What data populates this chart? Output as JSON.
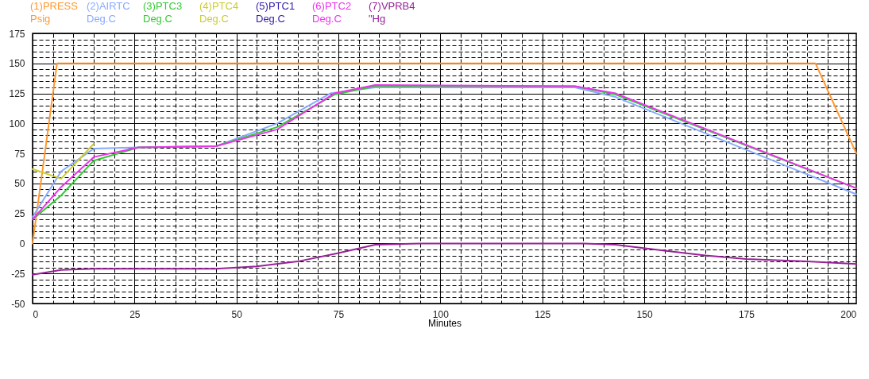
{
  "chart_data": {
    "type": "line",
    "xlabel": "Minutes",
    "xlim": [
      0,
      202
    ],
    "ylim": [
      -50,
      175
    ],
    "xticks": [
      0,
      {
        "value": 5,
        "label": null
      },
      {
        "value": 10,
        "label": null
      },
      {
        "value": 15,
        "label": null
      },
      {
        "value": 20,
        "label": null
      },
      25,
      {
        "value": 30,
        "label": null
      },
      {
        "value": 35,
        "label": null
      },
      {
        "value": 40,
        "label": null
      },
      {
        "value": 45,
        "label": null
      },
      50,
      {
        "value": 55,
        "label": null
      },
      {
        "value": 60,
        "label": null
      },
      {
        "value": 65,
        "label": null
      },
      {
        "value": 70,
        "label": null
      },
      75,
      {
        "value": 80,
        "label": null
      },
      {
        "value": 85,
        "label": null
      },
      {
        "value": 90,
        "label": null
      },
      {
        "value": 95,
        "label": null
      },
      100,
      {
        "value": 105,
        "label": null
      },
      {
        "value": 110,
        "label": null
      },
      {
        "value": 115,
        "label": null
      },
      {
        "value": 120,
        "label": null
      },
      125,
      {
        "value": 130,
        "label": null
      },
      {
        "value": 135,
        "label": null
      },
      {
        "value": 140,
        "label": null
      },
      {
        "value": 145,
        "label": null
      },
      150,
      {
        "value": 155,
        "label": null
      },
      {
        "value": 160,
        "label": null
      },
      {
        "value": 165,
        "label": null
      },
      {
        "value": 170,
        "label": null
      },
      175,
      {
        "value": 180,
        "label": null
      },
      {
        "value": 185,
        "label": null
      },
      {
        "value": 190,
        "label": null
      },
      {
        "value": 195,
        "label": null
      },
      200
    ],
    "yticks": [
      -50,
      {
        "value": -45,
        "label": null
      },
      {
        "value": -40,
        "label": null
      },
      {
        "value": -35,
        "label": null
      },
      {
        "value": -30,
        "label": null
      },
      -25,
      {
        "value": -20,
        "label": null
      },
      {
        "value": -15,
        "label": null
      },
      {
        "value": -10,
        "label": null
      },
      {
        "value": -5,
        "label": null
      },
      0,
      {
        "value": 5,
        "label": null
      },
      {
        "value": 10,
        "label": null
      },
      {
        "value": 15,
        "label": null
      },
      {
        "value": 20,
        "label": null
      },
      25,
      {
        "value": 30,
        "label": null
      },
      {
        "value": 35,
        "label": null
      },
      {
        "value": 40,
        "label": null
      },
      {
        "value": 45,
        "label": null
      },
      50,
      {
        "value": 55,
        "label": null
      },
      {
        "value": 60,
        "label": null
      },
      {
        "value": 65,
        "label": null
      },
      {
        "value": 70,
        "label": null
      },
      75,
      {
        "value": 80,
        "label": null
      },
      {
        "value": 85,
        "label": null
      },
      {
        "value": 90,
        "label": null
      },
      {
        "value": 95,
        "label": null
      },
      100,
      {
        "value": 105,
        "label": null
      },
      {
        "value": 110,
        "label": null
      },
      {
        "value": 115,
        "label": null
      },
      {
        "value": 120,
        "label": null
      },
      125,
      {
        "value": 130,
        "label": null
      },
      {
        "value": 135,
        "label": null
      },
      {
        "value": 140,
        "label": null
      },
      {
        "value": 145,
        "label": null
      },
      150,
      {
        "value": 155,
        "label": null
      },
      {
        "value": 160,
        "label": null
      },
      {
        "value": 165,
        "label": null
      },
      {
        "value": 170,
        "label": null
      },
      175
    ],
    "grid": true,
    "legend": "top",
    "marker": "none",
    "line_style": "solid",
    "annotations": [
      "Psig",
      "Deg.C",
      "Deg.C",
      "Deg.C",
      "Deg.C",
      "Deg.C",
      "\"Hg"
    ],
    "series": [
      {
        "name": "(1)PRESS",
        "color": "#ff9933",
        "x": [
          0,
          6,
          192,
          202
        ],
        "values": [
          0,
          150,
          150,
          75
        ]
      },
      {
        "name": "(2)AIRTC",
        "color": "#88aaff",
        "x": [
          0,
          7,
          15,
          26,
          45,
          60,
          73,
          84,
          133,
          143,
          202
        ],
        "values": [
          22,
          60,
          79,
          80,
          81,
          100,
          125,
          130,
          130,
          122,
          41
        ]
      },
      {
        "name": "(3)PTC3",
        "color": "#33cc33",
        "x": [
          0,
          7,
          15,
          26,
          45,
          60,
          74,
          84,
          133,
          143,
          202
        ],
        "values": [
          20,
          40,
          69,
          80,
          81,
          97,
          124,
          131,
          131,
          124,
          46
        ]
      },
      {
        "name": "(4)PTC4",
        "color": "#cccc33",
        "x": [
          0,
          7,
          15
        ],
        "values": [
          62,
          54,
          83
        ]
      },
      {
        "name": "(5)PTC1",
        "color": "#3322aa"
      },
      {
        "name": "(6)PTC2",
        "color": "#ee33ee",
        "x": [
          0,
          7,
          15,
          26,
          45,
          60,
          74,
          84,
          133,
          143,
          202
        ],
        "values": [
          20,
          47,
          72,
          80,
          81,
          95,
          125,
          132,
          131,
          125,
          46
        ]
      },
      {
        "name": "(7)VPRB4",
        "color": "#992299",
        "x": [
          0,
          7,
          15,
          45,
          55,
          65,
          75,
          84,
          95,
          135,
          143,
          155,
          165,
          175,
          190,
          202
        ],
        "values": [
          -26,
          -22,
          -21,
          -21,
          -19,
          -15,
          -8,
          -1,
          0,
          0,
          -1,
          -6,
          -10,
          -13,
          -15,
          -17
        ]
      }
    ]
  }
}
